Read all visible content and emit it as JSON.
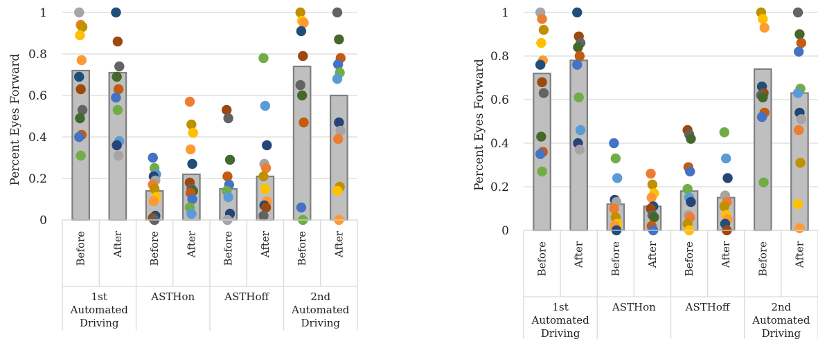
{
  "colors": [
    "#a5a5a5",
    "#1f4e79",
    "#4472c4",
    "#ed7d31",
    "#9e480e",
    "#70ad47",
    "#bf9000",
    "#636363",
    "#5b9bd5",
    "#ffc000",
    "#43682b",
    "#264478",
    "#ff9933",
    "#c55a11"
  ],
  "chart_data": [
    {
      "type": "bar",
      "title": "",
      "xlabel": "",
      "ylabel": "Percent Eyes Forward",
      "ylim": [
        0,
        1
      ],
      "yticks": [
        "0",
        "0.2",
        "0.4",
        "0.6",
        "0.8",
        "1"
      ],
      "grid": true,
      "groups": [
        {
          "label": [
            "1st",
            "Automated",
            "Driving"
          ],
          "categories": [
            "Before",
            "After"
          ]
        },
        {
          "label": [
            "ASTHon"
          ],
          "categories": [
            "Before",
            "After"
          ]
        },
        {
          "label": [
            "ASTHoff"
          ],
          "categories": [
            "Before",
            "After"
          ]
        },
        {
          "label": [
            "2nd",
            "Automated",
            "Driving"
          ],
          "categories": [
            "Before",
            "After"
          ]
        }
      ],
      "values": [
        0.72,
        0.71,
        0.14,
        0.22,
        0.15,
        0.21,
        0.74,
        0.6
      ],
      "scatter": [
        [
          1.0,
          0.94,
          0.93,
          0.89,
          0.77,
          0.69,
          0.63,
          0.53,
          0.49,
          0.41,
          0.4,
          0.31
        ],
        [
          1.0,
          0.86,
          0.74,
          0.69,
          0.63,
          0.59,
          0.53,
          0.38,
          0.36,
          0.31
        ],
        [
          0.3,
          0.25,
          0.22,
          0.21,
          0.19,
          0.17,
          0.15,
          0.11,
          0.09,
          0.02,
          0.01,
          0.0
        ],
        [
          0.57,
          0.46,
          0.42,
          0.34,
          0.27,
          0.18,
          0.15,
          0.14,
          0.13,
          0.1,
          0.06,
          0.03
        ],
        [
          0.53,
          0.49,
          0.29,
          0.21,
          0.17,
          0.14,
          0.11,
          0.03,
          0.0
        ],
        [
          0.78,
          0.55,
          0.36,
          0.27,
          0.25,
          0.21,
          0.15,
          0.09,
          0.07,
          0.06,
          0.02
        ],
        [
          1.0,
          0.96,
          0.95,
          0.91,
          0.79,
          0.65,
          0.6,
          0.47,
          0.06,
          0.0
        ],
        [
          1.0,
          0.87,
          0.78,
          0.75,
          0.71,
          0.68,
          0.47,
          0.43,
          0.39,
          0.16,
          0.14,
          0.0
        ]
      ]
    },
    {
      "type": "bar",
      "title": "",
      "xlabel": "",
      "ylabel": "Percent Eyes Forward",
      "ylim": [
        0,
        1
      ],
      "yticks": [
        "0",
        "0.2",
        "0.4",
        "0.6",
        "0.8",
        "1"
      ],
      "grid": true,
      "groups": [
        {
          "label": [
            "1st",
            "Automated",
            "Driving"
          ],
          "categories": [
            "Before",
            "After"
          ]
        },
        {
          "label": [
            "ASTHon"
          ],
          "categories": [
            "Before",
            "After"
          ]
        },
        {
          "label": [
            "ASTHoff"
          ],
          "categories": [
            "Before",
            "After"
          ]
        },
        {
          "label": [
            "2nd",
            "Automated",
            "Driving"
          ],
          "categories": [
            "Before",
            "After"
          ]
        }
      ],
      "values": [
        0.72,
        0.78,
        0.12,
        0.11,
        0.18,
        0.15,
        0.74,
        0.63
      ],
      "scatter": [
        [
          1.0,
          0.97,
          0.92,
          0.86,
          0.78,
          0.76,
          0.68,
          0.63,
          0.43,
          0.36,
          0.35,
          0.27
        ],
        [
          1.0,
          0.89,
          0.86,
          0.84,
          0.8,
          0.76,
          0.61,
          0.46,
          0.4,
          0.37
        ],
        [
          0.4,
          0.33,
          0.24,
          0.14,
          0.13,
          0.1,
          0.06,
          0.03,
          0.02,
          0.0
        ],
        [
          0.26,
          0.21,
          0.17,
          0.15,
          0.11,
          0.1,
          0.07,
          0.06,
          0.02,
          0.0
        ],
        [
          0.46,
          0.44,
          0.42,
          0.29,
          0.27,
          0.19,
          0.15,
          0.13,
          0.07,
          0.06,
          0.03,
          0.0
        ],
        [
          0.45,
          0.33,
          0.24,
          0.16,
          0.13,
          0.11,
          0.07,
          0.05,
          0.03,
          0.0
        ],
        [
          1.0,
          0.97,
          0.93,
          0.66,
          0.63,
          0.62,
          0.61,
          0.54,
          0.52,
          0.22
        ],
        [
          1.0,
          0.9,
          0.86,
          0.82,
          0.65,
          0.63,
          0.54,
          0.51,
          0.46,
          0.31,
          0.12,
          0.01
        ]
      ]
    }
  ]
}
